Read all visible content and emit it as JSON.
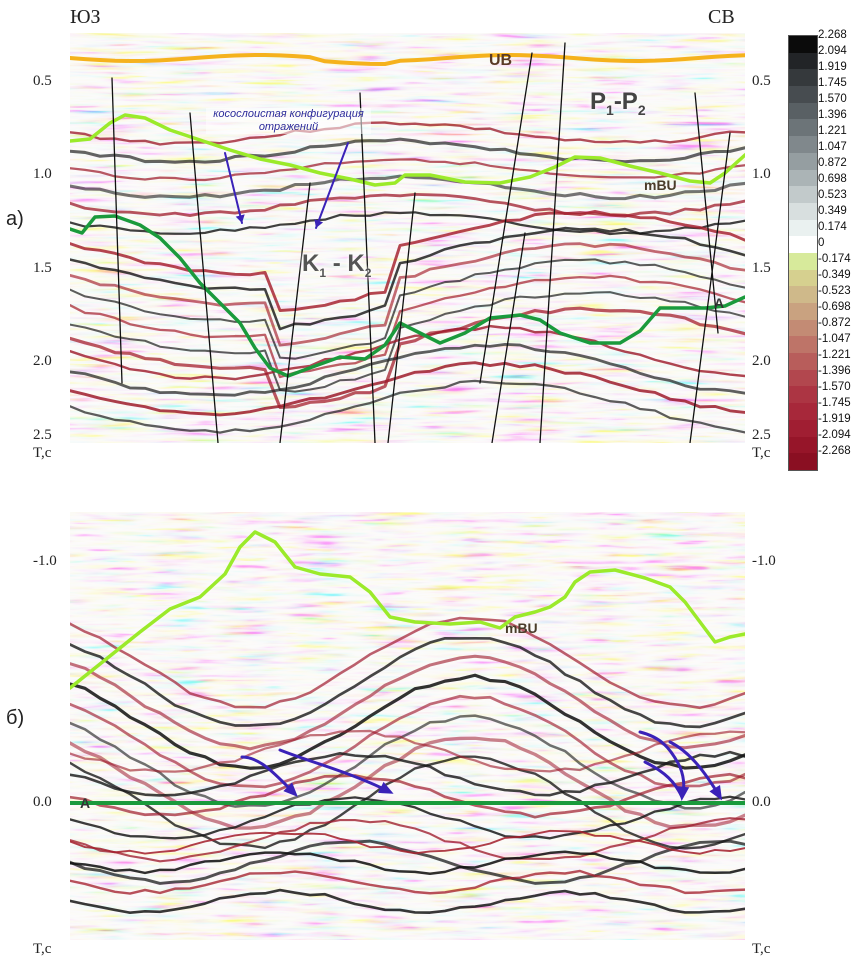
{
  "top": {
    "dir_left": "ЮЗ",
    "dir_right": "СВ",
    "panel_label": "а)",
    "ticks_left": [
      "0.5",
      "1.0",
      "1.5",
      "2.0",
      "2.5"
    ],
    "ticks_right": [
      "0.5",
      "1.0",
      "1.5",
      "2.0",
      "2.5"
    ],
    "axis_left": "T,c",
    "axis_right": "T,c",
    "ann_ub": "UB",
    "ann_p_main": "P",
    "ann_p_sub1": "1",
    "ann_p_dash": "-P",
    "ann_p_sub2": "2",
    "ann_cross_1": "косослоистая конфигурация",
    "ann_cross_2": "отражений",
    "ann_mbu": "mBU",
    "ann_k_main": "K",
    "ann_k_sub1": "1",
    "ann_k_dash": " - K",
    "ann_k_sub2": "2",
    "ann_a": "A"
  },
  "bottom": {
    "panel_label": "б)",
    "ticks_left": [
      "-1.0",
      "0.0"
    ],
    "ticks_right": [
      "-1.0",
      "0.0"
    ],
    "axis_left": "T,c",
    "axis_right": "T,c",
    "ann_mbu": "mBU",
    "ann_a": "A"
  },
  "colorbar": {
    "values": [
      "2.268",
      "2.094",
      "1.919",
      "1.745",
      "1.570",
      "1.396",
      "1.221",
      "1.047",
      "0.872",
      "0.698",
      "0.523",
      "0.349",
      "0.174",
      "0",
      "-0.174",
      "-0.349",
      "-0.523",
      "-0.698",
      "-0.872",
      "-1.047",
      "-1.221",
      "-1.396",
      "-1.570",
      "-1.745",
      "-1.919",
      "-2.094",
      "-2.268"
    ],
    "colors": [
      "#0b0b0b",
      "#222427",
      "#35393c",
      "#474c50",
      "#596064",
      "#6c7478",
      "#80888c",
      "#959ea1",
      "#abb4b6",
      "#c2cacb",
      "#d8dfdf",
      "#eaf1f0",
      "#ffffff",
      "#d7ea9b",
      "#d6d08f",
      "#cfb98a",
      "#c9a280",
      "#c38b74",
      "#be7468",
      "#b85d5b",
      "#b2474e",
      "#ac3543",
      "#a7283a",
      "#a01e32",
      "#961529",
      "#8a0f22"
    ]
  },
  "colors": {
    "ub_horizon": "#f5b21d",
    "mbu_horizon": "#9bea2a",
    "a_horizon": "#1a9a3c",
    "arrow": "#3a22b8",
    "fault": "#111111"
  }
}
